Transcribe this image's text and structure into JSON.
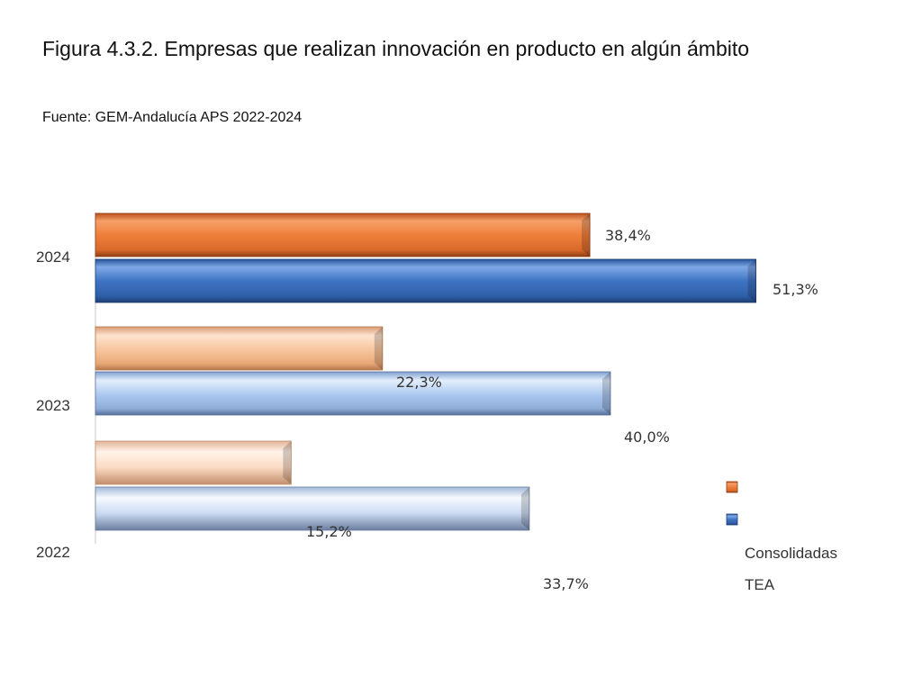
{
  "header": {
    "title": "Figura 4.3.2. Empresas que realizan innovación en producto en algún ámbito",
    "subtitle": "Fuente: GEM-Andalucía APS 2022-2024"
  },
  "chart_data": {
    "type": "bar",
    "orientation": "horizontal",
    "categories": [
      "2024",
      "2023",
      "2022"
    ],
    "series": [
      {
        "name": "Consolidadas",
        "values": [
          38.4,
          22.3,
          15.2
        ],
        "labels": [
          "38,4%",
          "22,3%",
          "15,2%"
        ]
      },
      {
        "name": "TEA",
        "values": [
          51.3,
          40.0,
          33.7
        ],
        "labels": [
          "51,3%",
          "40,0%",
          "33,7%"
        ]
      }
    ],
    "xlim": [
      0,
      60
    ],
    "grid": false,
    "legend_position": "bottom-right",
    "colors": {
      "consolidadas_2024": "#ef7f3a",
      "tea_2024": "#3f74c4",
      "consolidadas_light": "#f7c49c",
      "tea_light": "#a9c6ef"
    }
  }
}
